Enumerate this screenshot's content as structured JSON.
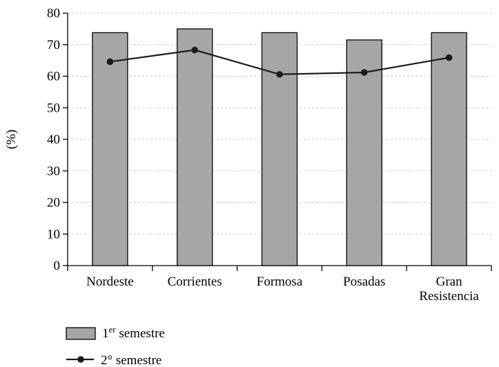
{
  "chart_data": {
    "type": "bar",
    "title": "",
    "xlabel": "",
    "ylabel": "(%)",
    "ylim": [
      0,
      80
    ],
    "yticks": [
      0,
      10,
      20,
      30,
      40,
      50,
      60,
      70,
      80
    ],
    "grid": "horizontal dashed",
    "legend_position": "bottom-left",
    "categories": [
      [
        "Nordeste"
      ],
      [
        "Corrientes"
      ],
      [
        "Formosa"
      ],
      [
        "Posadas"
      ],
      [
        "Gran",
        "Resistencia"
      ]
    ],
    "series": [
      {
        "name_main": "1",
        "name_sup": "er",
        "name_rest": " semestre",
        "type": "bar",
        "color": "#a6a6a6",
        "values": [
          73.8,
          75.0,
          73.8,
          71.5,
          73.8
        ]
      },
      {
        "name_main": "2° semestre",
        "type": "line",
        "color": "#1a1a1a",
        "values": [
          64.6,
          68.3,
          60.6,
          61.2,
          65.9
        ]
      }
    ]
  }
}
